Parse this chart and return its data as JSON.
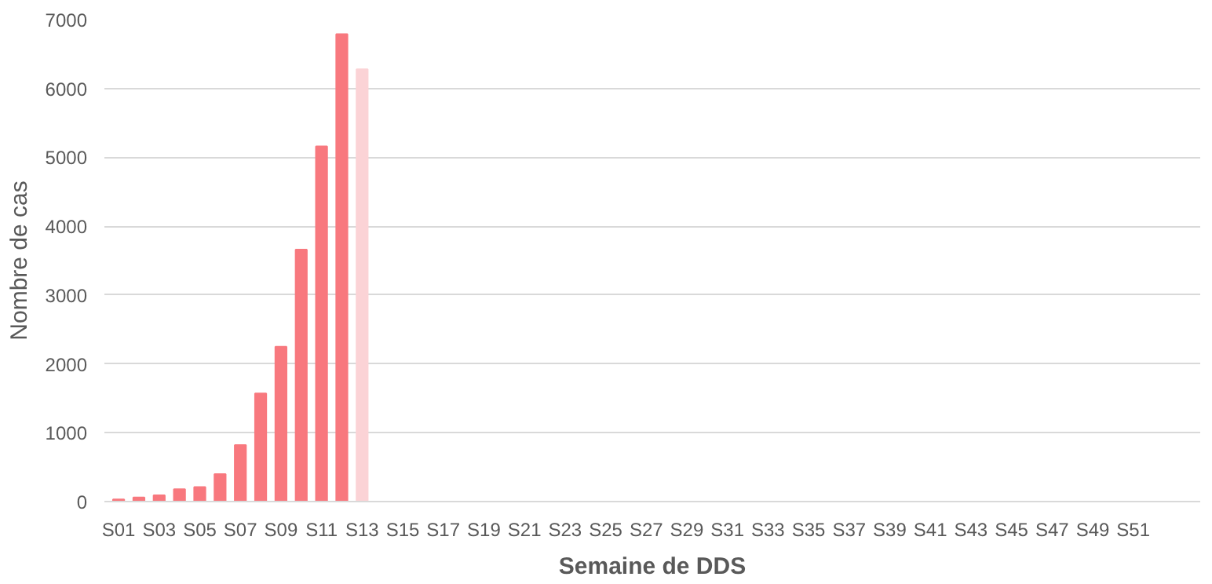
{
  "chart_data": {
    "type": "bar",
    "xlabel": "Semaine de DDS",
    "ylabel": "Nombre de cas",
    "categories": [
      "S01",
      null,
      "S03",
      null,
      "S05",
      null,
      "S07",
      null,
      "S09",
      null,
      "S11",
      null,
      "S13",
      null,
      "S15",
      null,
      "S17",
      null,
      "S19",
      null,
      "S21",
      null,
      "S23",
      null,
      "S25",
      null,
      "S27",
      null,
      "S29",
      null,
      "S31",
      null,
      "S33",
      null,
      "S35",
      null,
      "S37",
      null,
      "S39",
      null,
      "S41",
      null,
      "S43",
      null,
      "S45",
      null,
      "S47",
      null,
      "S49",
      null,
      "S51",
      null,
      null
    ],
    "values": [
      30,
      60,
      90,
      180,
      210,
      400,
      820,
      1570,
      2250,
      3660,
      5160,
      6790,
      6280,
      null,
      null,
      null,
      null,
      null,
      null,
      null,
      null,
      null,
      null,
      null,
      null,
      null,
      null,
      null,
      null,
      null,
      null,
      null,
      null,
      null,
      null,
      null,
      null,
      null,
      null,
      null,
      null,
      null,
      null,
      null,
      null,
      null,
      null,
      null,
      null,
      null,
      null,
      null,
      null
    ],
    "colors": [
      "#f8787e",
      "#f8787e",
      "#f8787e",
      "#f8787e",
      "#f8787e",
      "#f8787e",
      "#f8787e",
      "#f8787e",
      "#f8787e",
      "#f8787e",
      "#f8787e",
      "#f8787e",
      "#fbd3d6",
      "#f8787e",
      "#f8787e",
      "#f8787e",
      "#f8787e",
      "#f8787e",
      "#f8787e",
      "#f8787e",
      "#f8787e",
      "#f8787e",
      "#f8787e",
      "#f8787e",
      "#f8787e",
      "#f8787e",
      "#f8787e",
      "#f8787e",
      "#f8787e",
      "#f8787e",
      "#f8787e",
      "#f8787e",
      "#f8787e",
      "#f8787e",
      "#f8787e",
      "#f8787e",
      "#f8787e",
      "#f8787e",
      "#f8787e",
      "#f8787e",
      "#f8787e",
      "#f8787e",
      "#f8787e",
      "#f8787e",
      "#f8787e",
      "#f8787e",
      "#f8787e",
      "#f8787e",
      "#f8787e",
      "#f8787e",
      "#f8787e",
      "#f8787e",
      "#f8787e"
    ],
    "ylim": [
      0,
      7000
    ],
    "yticks": [
      0,
      1000,
      2000,
      3000,
      4000,
      5000,
      6000,
      7000
    ],
    "grid": "y"
  }
}
